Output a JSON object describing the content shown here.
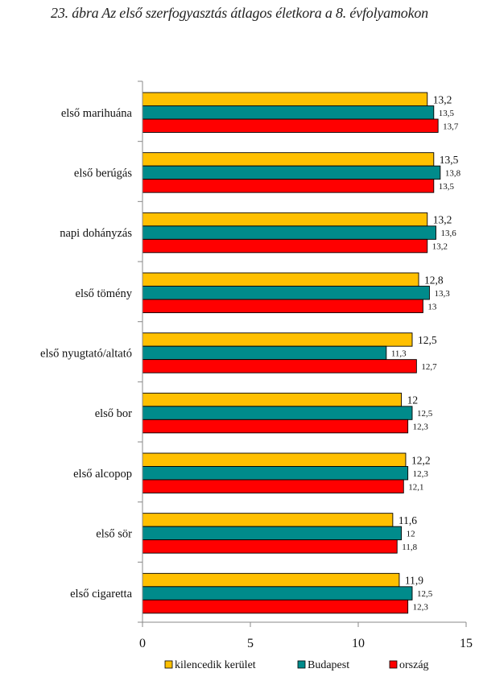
{
  "chart_data": {
    "type": "bar",
    "orientation": "horizontal",
    "title": "23. ábra Az első szerfogyasztás átlagos életkora a 8. évfolyamokon",
    "categories": [
      "első marihuána",
      "első berúgás",
      "napi dohányzás",
      "első tömény",
      "első nyugtató/altató",
      "első bor",
      "első alcopop",
      "első sör",
      "első cigaretta"
    ],
    "series": [
      {
        "name": "kilencedik kerület",
        "color": "#FFC000",
        "values": [
          13.2,
          13.5,
          13.2,
          12.8,
          12.5,
          12,
          12.2,
          11.6,
          11.9
        ],
        "labels": [
          "13,2",
          "13,5",
          "13,2",
          "12,8",
          "12,5",
          "12",
          "12,2",
          "11,6",
          "11,9"
        ]
      },
      {
        "name": "Budapest",
        "color": "#008B8B",
        "values": [
          13.5,
          13.8,
          13.6,
          13.3,
          11.3,
          12.5,
          12.3,
          12,
          12.5
        ],
        "labels": [
          "13,5",
          "13,8",
          "13,6",
          "13,3",
          "11,3",
          "12,5",
          "12,3",
          "12",
          "12,5"
        ]
      },
      {
        "name": "ország",
        "color": "#FF0000",
        "values": [
          13.7,
          13.5,
          13.2,
          13,
          12.7,
          12.3,
          12.1,
          11.8,
          12.3
        ],
        "labels": [
          "13,7",
          "13,5",
          "13,2",
          "13",
          "12,7",
          "12,3",
          "12,1",
          "11,8",
          "12,3"
        ]
      }
    ],
    "xlim": [
      0,
      15
    ],
    "xticks": [
      "0",
      "5",
      "10",
      "15"
    ],
    "grid": false,
    "legend": "bottom"
  }
}
